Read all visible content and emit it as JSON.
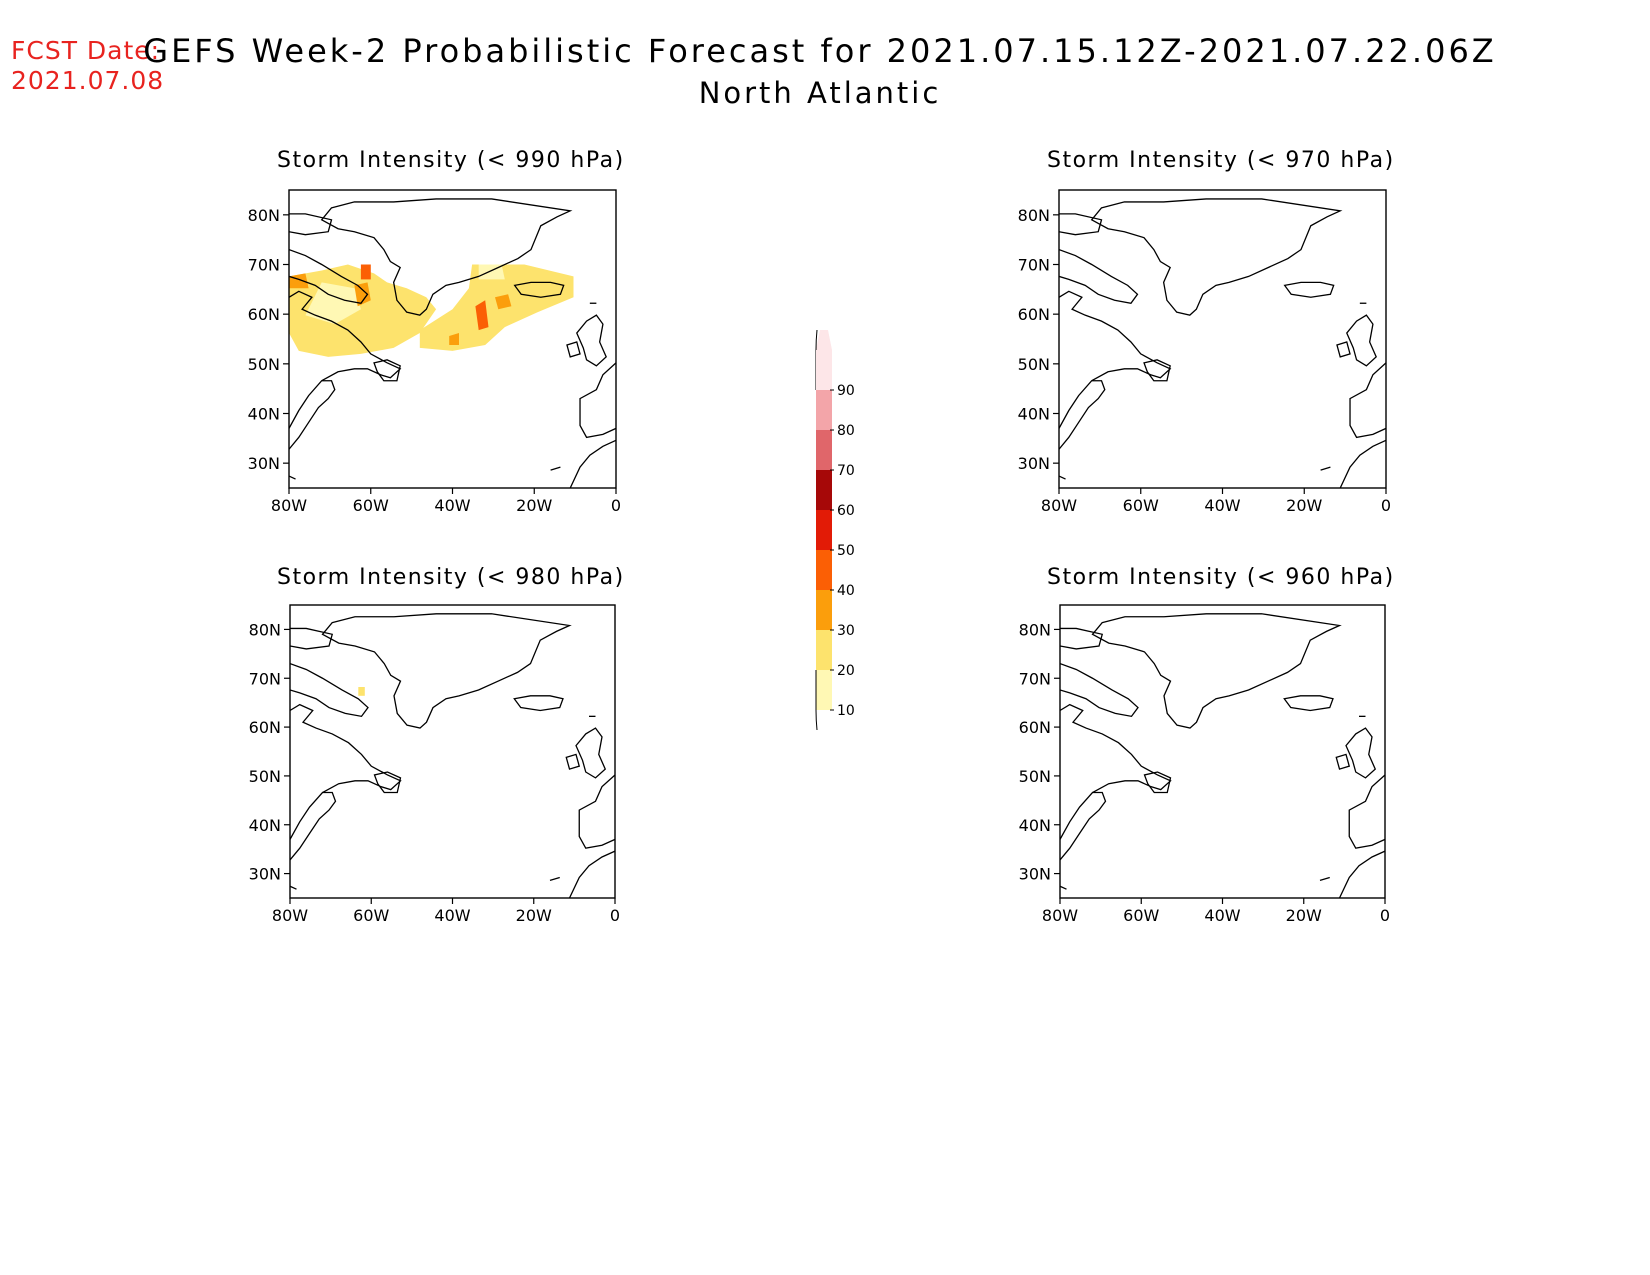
{
  "header": {
    "fcst_label": "FCST Date:",
    "fcst_date": "2021.07.08",
    "title": "GEFS Week-2 Probabilistic Forecast for 2021.07.15.12Z-2021.07.22.06Z",
    "subtitle": "North Atlantic"
  },
  "panels": [
    {
      "id": "p990",
      "title": "Storm Intensity (< 990 hPa)",
      "threshold_hpa": 990,
      "has_shading": true
    },
    {
      "id": "p970",
      "title": "Storm Intensity (< 970 hPa)",
      "threshold_hpa": 970,
      "has_shading": false
    },
    {
      "id": "p980",
      "title": "Storm Intensity (< 980 hPa)",
      "threshold_hpa": 980,
      "has_shading": true
    },
    {
      "id": "p960",
      "title": "Storm Intensity (< 960 hPa)",
      "threshold_hpa": 960,
      "has_shading": false
    }
  ],
  "axes": {
    "lat_labels": [
      "80N",
      "70N",
      "60N",
      "50N",
      "40N",
      "30N"
    ],
    "lat_values": [
      80,
      70,
      60,
      50,
      40,
      30
    ],
    "lon_labels": [
      "80W",
      "60W",
      "40W",
      "20W",
      "0"
    ],
    "lon_values": [
      -80,
      -60,
      -40,
      -20,
      0
    ],
    "lon_range": [
      -80,
      0
    ],
    "lat_range": [
      25,
      85
    ]
  },
  "colorbar": {
    "labels": [
      "10",
      "20",
      "30",
      "40",
      "50",
      "60",
      "70",
      "80",
      "90"
    ],
    "colors": [
      "#fff8b4",
      "#fde36d",
      "#fb9e0c",
      "#fb5f05",
      "#e21b06",
      "#a60808",
      "#e0666a",
      "#f3a5a9",
      "#fde6e8"
    ]
  }
}
